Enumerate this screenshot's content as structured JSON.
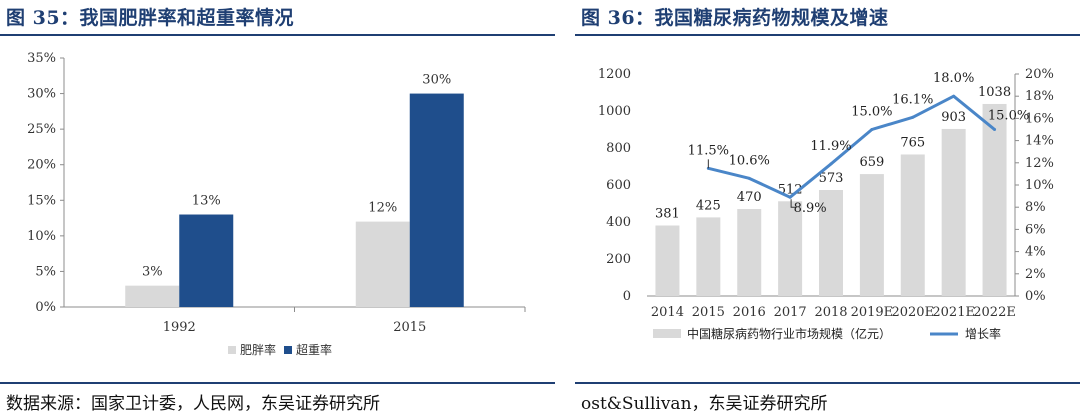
{
  "left_figure": {
    "title": "图 35：我国肥胖率和超重率情况",
    "source": "数据来源：国家卫计委，人民网，东吴证券研究所"
  },
  "right_figure": {
    "title": "图 36：我国糖尿病药物规模及增速",
    "source": "ost&Sullivan，东吴证券研究所"
  },
  "colors": {
    "brand_navy": "#1f3f73",
    "obesity_bar": "#d9d9d9",
    "overweight_bar": "#1f4e8c",
    "market_bar": "#d9d9d9",
    "growth_line": "#4a86c8"
  },
  "chart_data": [
    {
      "type": "bar",
      "categories": [
        "1992",
        "2015"
      ],
      "series": [
        {
          "name": "肥胖率",
          "values": [
            3,
            12
          ],
          "labels": [
            "3%",
            "12%"
          ]
        },
        {
          "name": "超重率",
          "values": [
            13,
            30
          ],
          "labels": [
            "13%",
            "30%"
          ]
        }
      ],
      "yticks": [
        "0%",
        "5%",
        "10%",
        "15%",
        "20%",
        "25%",
        "30%",
        "35%"
      ],
      "ylim": [
        0,
        35
      ],
      "legend_position": "bottom",
      "grid": false
    },
    {
      "type": "bar",
      "categories": [
        "2014",
        "2015",
        "2016",
        "2017",
        "2018",
        "2019E",
        "2020E",
        "2021E",
        "2022E"
      ],
      "series": [
        {
          "name": "中国糖尿病药物行业市场规模（亿元）",
          "type": "bar",
          "axis": "left",
          "values": [
            381,
            425,
            470,
            512,
            573,
            659,
            765,
            903,
            1038
          ],
          "labels": [
            "381",
            "425",
            "470",
            "512",
            "573",
            "659",
            "765",
            "903",
            "1038"
          ]
        },
        {
          "name": "增长率",
          "type": "line",
          "axis": "right",
          "values": [
            null,
            11.5,
            10.6,
            8.9,
            11.9,
            15.0,
            16.1,
            18.0,
            15.0
          ],
          "labels": [
            "",
            "11.5%",
            "10.6%",
            "8.9%",
            "11.9%",
            "15.0%",
            "16.1%",
            "18.0%",
            "15.0%"
          ]
        }
      ],
      "yticks_left": [
        "0",
        "200",
        "400",
        "600",
        "800",
        "1000",
        "1200"
      ],
      "ylim_left": [
        0,
        1200
      ],
      "yticks_right": [
        "0%",
        "2%",
        "4%",
        "6%",
        "8%",
        "10%",
        "12%",
        "14%",
        "16%",
        "18%",
        "20%"
      ],
      "ylim_right": [
        0,
        20
      ],
      "legend_position": "bottom",
      "grid": false
    }
  ]
}
